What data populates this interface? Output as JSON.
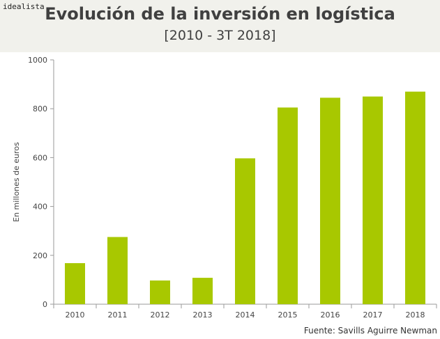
{
  "brand": "idealista",
  "source": "Fuente: Savills Aguirre Newman",
  "colors": {
    "bar": "#a8c800",
    "axis": "#9a9a9a",
    "header_bg": "#f1f1ec"
  },
  "chart_data": {
    "type": "bar",
    "title": "Evolución de la inversión en logística",
    "subtitle": "[2010 - 3T 2018]",
    "xlabel": "",
    "ylabel": "En millones de euros",
    "ylim": [
      0,
      1000
    ],
    "yticks": [
      0,
      200,
      400,
      600,
      800,
      1000
    ],
    "categories": [
      "2010",
      "2011",
      "2012",
      "2013",
      "2014",
      "2015",
      "2016",
      "2017",
      "2018"
    ],
    "values": [
      168,
      275,
      97,
      108,
      597,
      805,
      845,
      850,
      870
    ],
    "grid": false,
    "legend": "none"
  }
}
